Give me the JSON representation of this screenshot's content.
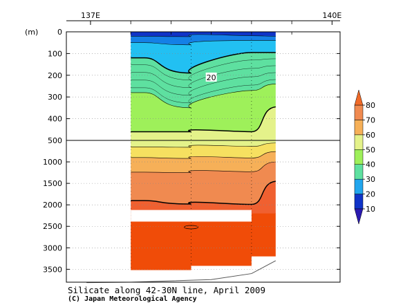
{
  "chart_data": {
    "type": "heatmap",
    "title": "Silicate along 42-30N line, April 2009",
    "credit": "(C) Japan Meteorological Agency",
    "x_axis": {
      "range": [
        136.7,
        140.1
      ],
      "tick_labels": [
        {
          "label": "137E",
          "value": 137
        },
        {
          "label": "140E",
          "value": 140
        }
      ],
      "minor_ticks": [
        137.5,
        138.0,
        138.5,
        139.0,
        139.5
      ]
    },
    "y_axis": {
      "unit_label": "(m)",
      "scale": "piecewise-linear, break at 500 m",
      "upper_range": [
        0,
        500
      ],
      "lower_range": [
        500,
        3800
      ],
      "ticks": [
        0,
        100,
        200,
        300,
        400,
        500,
        1000,
        1500,
        2000,
        2500,
        3000,
        3500
      ]
    },
    "colorbar": {
      "levels": [
        10,
        20,
        30,
        40,
        50,
        60,
        70,
        80
      ],
      "labels": [
        "10",
        "20",
        "30",
        "40",
        "50",
        "60",
        "70",
        "80"
      ],
      "colors": [
        "#1034c8",
        "#1480e6",
        "#22c0f2",
        "#5ee0a0",
        "#9ef05a",
        "#e4f28a",
        "#f6e060",
        "#f6b058",
        "#f08a50",
        "#f06030",
        "#f04c08"
      ],
      "under_color": "#2a1ab0",
      "over_color": "#f04c08"
    },
    "stations": [
      138.0,
      138.5,
      139.0
    ],
    "section_x_range": [
      137.5,
      139.3
    ],
    "contour_label": "20",
    "contour_label_position": {
      "lon": 138.5,
      "depth": 210
    },
    "bands": [
      {
        "level": 0,
        "a": 0,
        "b": 0,
        "c": 0,
        "d": 0
      },
      {
        "level": 1,
        "a": 20,
        "b": 22,
        "c": 18,
        "d": 20
      },
      {
        "level": 2,
        "a": 50,
        "b": 60,
        "c": 40,
        "d": 40
      },
      {
        "level": 3,
        "a": 120,
        "b": 190,
        "c": 95,
        "d": 95
      },
      {
        "level": 4,
        "a": 280,
        "b": 350,
        "c": 270,
        "d": 240
      },
      {
        "level": 5,
        "a": 460,
        "b": 460,
        "c": 460,
        "d": 345
      },
      {
        "level": 6,
        "a": 650,
        "b": 660,
        "c": 640,
        "d": 560
      },
      {
        "level": 7,
        "a": 900,
        "b": 920,
        "c": 910,
        "d": 760
      },
      {
        "level": 8,
        "a": 1240,
        "b": 1250,
        "c": 1230,
        "d": 1000
      },
      {
        "level": 9,
        "a": 1900,
        "b": 1980,
        "c": 1990,
        "d": 1450
      },
      {
        "level": 10,
        "a": 2200,
        "b": 2200,
        "c": 2200,
        "d": 2200
      }
    ],
    "fill_depth": 3520,
    "gap": {
      "from": 137.5,
      "to": 139.0,
      "top_depth": 2120,
      "bottom_depth": 2390
    },
    "bottom_profile": [
      {
        "lon": 136.95,
        "depth": 3810
      },
      {
        "lon": 137.5,
        "depth": 3800
      },
      {
        "lon": 138.5,
        "depth": 3740
      },
      {
        "lon": 139.0,
        "depth": 3600
      },
      {
        "lon": 139.3,
        "depth": 3300
      }
    ]
  }
}
